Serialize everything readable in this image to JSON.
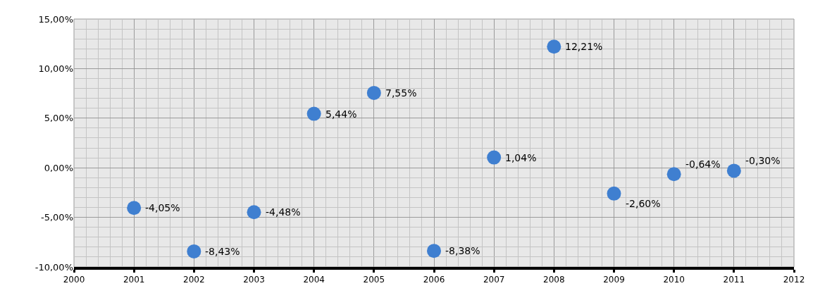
{
  "chart_data": {
    "type": "scatter",
    "x": [
      2001,
      2002,
      2003,
      2004,
      2005,
      2006,
      2007,
      2008,
      2009,
      2010,
      2011
    ],
    "series": [
      {
        "color": "#3f7fd0",
        "values": [
          -4.05,
          -8.43,
          -4.48,
          5.44,
          7.55,
          -8.38,
          1.04,
          12.21,
          -2.6,
          -0.64,
          -0.3
        ],
        "value_labels": [
          "-4,05%",
          "-8,43%",
          "-4,48%",
          "5,44%",
          "7,55%",
          "-8,38%",
          "1,04%",
          "12,21%",
          "-2,60%",
          "-0,64%",
          "-0,30%"
        ]
      }
    ],
    "xlim": [
      2000,
      2012
    ],
    "xticks": [
      2000,
      2001,
      2002,
      2003,
      2004,
      2005,
      2006,
      2007,
      2008,
      2009,
      2010,
      2011,
      2012
    ],
    "ylim": [
      -10,
      15
    ],
    "yticks": [
      {
        "value": -10,
        "label": "-10,00%"
      },
      {
        "value": -5,
        "label": "-5,00%"
      },
      {
        "value": 0,
        "label": "0,00%"
      },
      {
        "value": 5,
        "label": "5,00%"
      },
      {
        "value": 10,
        "label": "10,00%"
      },
      {
        "value": 15,
        "label": "15,00%"
      }
    ],
    "grid": true,
    "marker": "circle",
    "legend": false
  }
}
